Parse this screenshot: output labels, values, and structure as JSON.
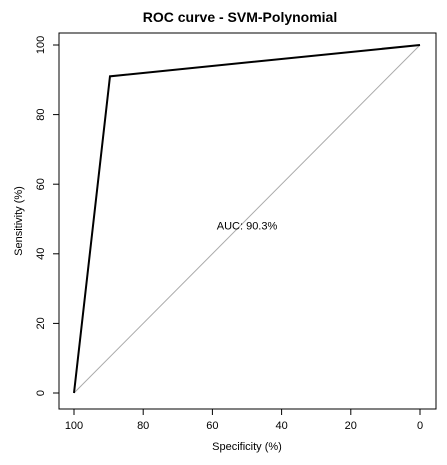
{
  "chart_data": {
    "type": "line",
    "title": "ROC curve - SVM-Polynomial",
    "xlabel": "Specificity (%)",
    "ylabel": "Sensitivity (%)",
    "x_reversed": true,
    "xlim": [
      100,
      0
    ],
    "ylim": [
      0,
      100
    ],
    "xticks": [
      "100",
      "80",
      "60",
      "40",
      "20",
      "0"
    ],
    "yticks": [
      "0",
      "20",
      "40",
      "60",
      "80",
      "100"
    ],
    "series": [
      {
        "x": [
          100,
          89.6,
          0
        ],
        "y": [
          0,
          91,
          100
        ],
        "color": "#000000"
      }
    ],
    "reference_line": {
      "x": [
        100,
        0
      ],
      "y": [
        0,
        100
      ],
      "color": "#aaaaaa"
    },
    "annotation": {
      "text": "AUC: 90.3%",
      "x": 50,
      "y": 47
    },
    "grid": false,
    "legend": "none"
  }
}
